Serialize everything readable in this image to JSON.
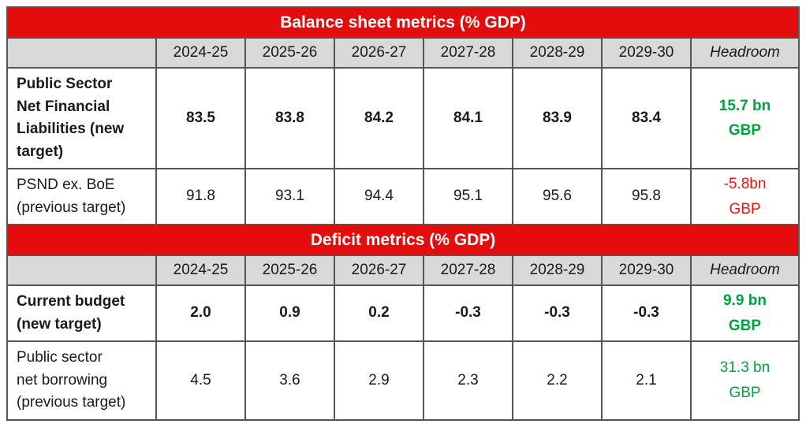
{
  "colors": {
    "band_red": "#E30D0D",
    "band_text": "#FFFFFF",
    "header_grey": "#D9D9D9",
    "positive_green": "#00A33B",
    "negative_red": "#F8100C",
    "border_inner": "#555555",
    "border_outer": "#2B2B2B",
    "text_black": "#1A1A1A"
  },
  "sections": [
    {
      "title": "Balance sheet metrics (% GDP)",
      "columns": [
        "2024-25",
        "2025-26",
        "2026-27",
        "2027-28",
        "2028-29",
        "2029-30"
      ],
      "headroom_label": "Headroom",
      "rows": [
        {
          "label": "Public Sector\nNet Financial\nLiabilities (new\ntarget)",
          "values": [
            "83.5",
            "83.8",
            "84.2",
            "84.1",
            "83.9",
            "83.4"
          ],
          "headroom": {
            "line1": "15.7 bn",
            "line2": "GBP",
            "status": "positive",
            "bold": true
          }
        },
        {
          "label": "PSND ex. BoE\n(previous target)",
          "values": [
            "91.8",
            "93.1",
            "94.4",
            "95.1",
            "95.6",
            "95.8"
          ],
          "headroom": {
            "line1": "-5.8bn",
            "line2": "GBP",
            "status": "negative",
            "bold": false
          }
        }
      ]
    },
    {
      "title": "Deficit metrics (% GDP)",
      "columns": [
        "2024-25",
        "2025-26",
        "2026-27",
        "2027-28",
        "2028-29",
        "2029-30"
      ],
      "headroom_label": "Headroom",
      "rows": [
        {
          "label": "Current budget\n(new target)",
          "values": [
            "2.0",
            "0.9",
            "0.2",
            "-0.3",
            "-0.3",
            "-0.3"
          ],
          "headroom": {
            "line1": "9.9 bn",
            "line2": "GBP",
            "status": "positive",
            "bold": true
          }
        },
        {
          "label": "Public sector\nnet borrowing\n(previous target)",
          "values": [
            "4.5",
            "3.6",
            "2.9",
            "2.3",
            "2.2",
            "2.1"
          ],
          "headroom": {
            "line1": "31.3 bn",
            "line2": "GBP",
            "status": "positive",
            "bold": false
          }
        }
      ]
    }
  ],
  "chart_data": [
    {
      "type": "table",
      "title": "Balance sheet metrics (% GDP)",
      "columns": [
        "",
        "2024-25",
        "2025-26",
        "2026-27",
        "2027-28",
        "2028-29",
        "2029-30",
        "Headroom"
      ],
      "rows": [
        [
          "Public Sector Net Financial Liabilities (new target)",
          83.5,
          83.8,
          84.2,
          84.1,
          83.9,
          83.4,
          "15.7 bn GBP"
        ],
        [
          "PSND ex. BoE (previous target)",
          91.8,
          93.1,
          94.4,
          95.1,
          95.6,
          95.8,
          "-5.8bn GBP"
        ]
      ]
    },
    {
      "type": "table",
      "title": "Deficit metrics (% GDP)",
      "columns": [
        "",
        "2024-25",
        "2025-26",
        "2026-27",
        "2027-28",
        "2028-29",
        "2029-30",
        "Headroom"
      ],
      "rows": [
        [
          "Current budget (new target)",
          2.0,
          0.9,
          0.2,
          -0.3,
          -0.3,
          -0.3,
          "9.9 bn GBP"
        ],
        [
          "Public sector net borrowing (previous target)",
          4.5,
          3.6,
          2.9,
          2.3,
          2.2,
          2.1,
          "31.3 bn GBP"
        ]
      ]
    }
  ]
}
